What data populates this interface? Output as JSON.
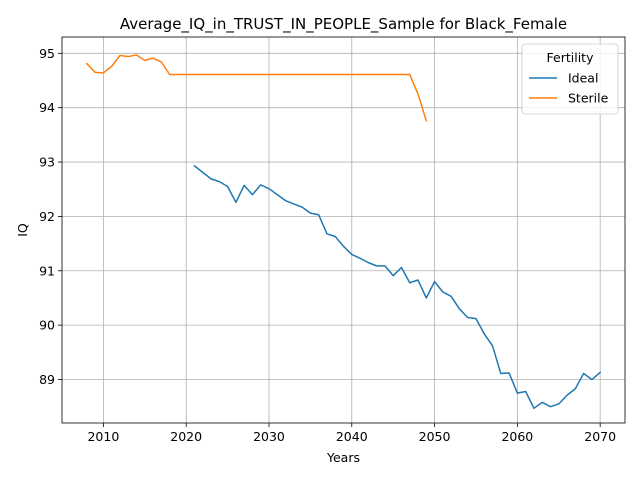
{
  "chart_data": {
    "type": "line",
    "title": "Average_IQ_in_TRUST_IN_PEOPLE_Sample for Black_Female",
    "xlabel": "Years",
    "ylabel": "IQ",
    "xlim": [
      2005,
      2073
    ],
    "ylim": [
      88.2,
      95.3
    ],
    "xticks": [
      2010,
      2020,
      2030,
      2040,
      2050,
      2060,
      2070
    ],
    "yticks": [
      89,
      90,
      91,
      92,
      93,
      94,
      95
    ],
    "grid": true,
    "legend": {
      "title": "Fertility",
      "placement": "top-right"
    },
    "series": [
      {
        "name": "Ideal",
        "color": "#1f77b4",
        "x": [
          2021,
          2022,
          2023,
          2024,
          2025,
          2026,
          2027,
          2028,
          2029,
          2030,
          2031,
          2032,
          2033,
          2034,
          2035,
          2036,
          2037,
          2038,
          2039,
          2040,
          2041,
          2042,
          2043,
          2044,
          2045,
          2046,
          2047,
          2048,
          2049,
          2050,
          2051,
          2052,
          2053,
          2054,
          2055,
          2056,
          2057,
          2058,
          2059,
          2060,
          2061,
          2062,
          2063,
          2064,
          2065,
          2066,
          2067,
          2068,
          2069,
          2070
        ],
        "y": [
          92.93,
          92.81,
          92.69,
          92.64,
          92.55,
          92.26,
          92.57,
          92.4,
          92.58,
          92.51,
          92.4,
          92.29,
          92.23,
          92.17,
          92.06,
          92.03,
          91.68,
          91.63,
          91.45,
          91.3,
          91.23,
          91.15,
          91.09,
          91.09,
          90.91,
          91.06,
          90.78,
          90.83,
          90.5,
          90.8,
          90.61,
          90.53,
          90.3,
          90.14,
          90.12,
          89.84,
          89.62,
          89.11,
          89.12,
          88.75,
          88.78,
          88.47,
          88.58,
          88.5,
          88.55,
          88.71,
          88.83,
          89.11,
          89.0,
          89.13
        ]
      },
      {
        "name": "Sterile",
        "color": "#ff7f0e",
        "x": [
          2008,
          2009,
          2010,
          2011,
          2012,
          2013,
          2014,
          2015,
          2016,
          2017,
          2018,
          2019,
          2020,
          2021,
          2022,
          2023,
          2024,
          2025,
          2026,
          2027,
          2028,
          2029,
          2030,
          2031,
          2032,
          2033,
          2034,
          2035,
          2036,
          2037,
          2038,
          2039,
          2040,
          2041,
          2042,
          2043,
          2044,
          2045,
          2046,
          2047,
          2048,
          2049
        ],
        "y": [
          94.81,
          94.65,
          94.64,
          94.76,
          94.96,
          94.94,
          94.97,
          94.87,
          94.91,
          94.84,
          94.61,
          94.61,
          94.61,
          94.61,
          94.61,
          94.61,
          94.61,
          94.61,
          94.61,
          94.61,
          94.61,
          94.61,
          94.61,
          94.61,
          94.61,
          94.61,
          94.61,
          94.61,
          94.61,
          94.61,
          94.61,
          94.61,
          94.61,
          94.61,
          94.61,
          94.61,
          94.61,
          94.61,
          94.61,
          94.61,
          94.25,
          93.76
        ]
      }
    ]
  }
}
